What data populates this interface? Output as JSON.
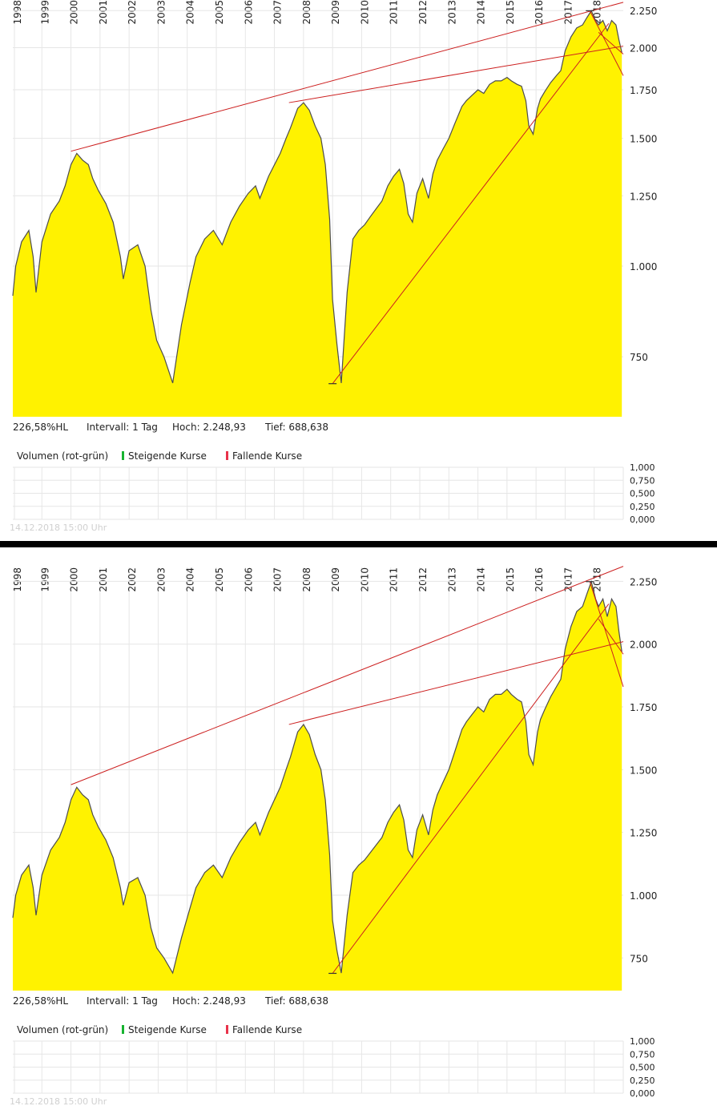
{
  "colors": {
    "fill": "#fff200",
    "price_line": "#4d4d4d",
    "trend_line": "#cc1f1f",
    "grid": "#e6e6e6",
    "rising": "#17b330",
    "falling": "#e8334a",
    "divider": "#000000"
  },
  "panels": [
    {
      "scale": "log",
      "info": {
        "range": "226,58%HL",
        "interval": "Intervall: 1 Tag",
        "high": "Hoch:  2.248,93",
        "low": "Tief:  688,638"
      },
      "volume_legend": {
        "label": "Volumen (rot-grün)",
        "rising": "Steigende Kurse",
        "falling": "Fallende Kurse"
      },
      "volume_ticks": [
        "1,000",
        "0,750",
        "0,500",
        "0,250",
        "0,000"
      ],
      "timestamp": "14.12.2018 15:00 Uhr"
    },
    {
      "scale": "linear",
      "info": {
        "range": "226,58%HL",
        "interval": "Intervall: 1 Tag",
        "high": "Hoch:  2.248,93",
        "low": "Tief:  688,638"
      },
      "volume_legend": {
        "label": "Volumen (rot-grün)",
        "rising": "Steigende Kurse",
        "falling": "Fallende Kurse"
      },
      "volume_ticks": [
        "1,000",
        "0,750",
        "0,500",
        "0,250",
        "0,000"
      ],
      "timestamp": "14.12.2018 15:00 Uhr"
    }
  ],
  "chart_data": {
    "type": "area",
    "x_unit": "year",
    "years": [
      "1998",
      "1999",
      "2000",
      "2001",
      "2002",
      "2003",
      "2004",
      "2005",
      "2006",
      "2007",
      "2008",
      "2009",
      "2010",
      "2011",
      "2012",
      "2013",
      "2014",
      "2015",
      "2016",
      "2017",
      "2018"
    ],
    "y_ticks": [
      750,
      1000,
      1250,
      1500,
      1750,
      2000,
      2250
    ],
    "y_tick_labels": [
      "750",
      "1.000",
      "1.250",
      "1.500",
      "1.750",
      "2.000",
      "2.250"
    ],
    "ylim": [
      620,
      2280
    ],
    "x_range": [
      1998.0,
      2019.0
    ],
    "series": [
      {
        "x": [
          1998.0,
          1998.1,
          1998.3,
          1998.55,
          1998.7,
          1998.8,
          1999.0,
          1999.3,
          1999.6,
          1999.8,
          2000.0,
          2000.2,
          2000.4,
          2000.6,
          2000.75,
          2000.95,
          2001.2,
          2001.45,
          2001.7,
          2001.8,
          2002.0,
          2002.3,
          2002.55,
          2002.75,
          2002.95,
          2003.2,
          2003.5,
          2003.8,
          2004.1,
          2004.3,
          2004.6,
          2004.9,
          2005.2,
          2005.5,
          2005.8,
          2006.1,
          2006.35,
          2006.5,
          2006.8,
          2007.2,
          2007.4,
          2007.55,
          2007.8,
          2008.0,
          2008.2,
          2008.4,
          2008.6,
          2008.75,
          2008.9,
          2009.0,
          2009.15,
          2009.3,
          2009.5,
          2009.7,
          2009.9,
          2010.1,
          2010.3,
          2010.5,
          2010.7,
          2010.9,
          2011.1,
          2011.3,
          2011.45,
          2011.6,
          2011.75,
          2011.9,
          2012.1,
          2012.3,
          2012.45,
          2012.6,
          2012.8,
          2013.0,
          2013.2,
          2013.45,
          2013.6,
          2013.8,
          2014.0,
          2014.2,
          2014.4,
          2014.6,
          2014.8,
          2015.0,
          2015.15,
          2015.35,
          2015.5,
          2015.65,
          2015.75,
          2015.9,
          2016.05,
          2016.15,
          2016.3,
          2016.5,
          2016.7,
          2016.85,
          2017.0,
          2017.2,
          2017.4,
          2017.6,
          2017.75,
          2017.9,
          2018.05,
          2018.15,
          2018.3,
          2018.45,
          2018.6,
          2018.75,
          2018.85,
          2018.95
        ],
        "y": [
          910,
          1000,
          1080,
          1120,
          1030,
          920,
          1080,
          1180,
          1230,
          1290,
          1380,
          1430,
          1400,
          1380,
          1320,
          1270,
          1220,
          1150,
          1030,
          960,
          1050,
          1070,
          1000,
          870,
          790,
          750,
          690,
          830,
          950,
          1030,
          1090,
          1120,
          1070,
          1150,
          1210,
          1260,
          1290,
          1240,
          1330,
          1430,
          1500,
          1550,
          1650,
          1680,
          1640,
          1560,
          1500,
          1380,
          1160,
          900,
          780,
          690,
          920,
          1090,
          1120,
          1140,
          1170,
          1200,
          1230,
          1290,
          1330,
          1360,
          1300,
          1180,
          1150,
          1260,
          1320,
          1240,
          1340,
          1400,
          1450,
          1500,
          1570,
          1660,
          1690,
          1720,
          1750,
          1730,
          1780,
          1800,
          1800,
          1820,
          1800,
          1780,
          1770,
          1690,
          1560,
          1520,
          1650,
          1700,
          1740,
          1790,
          1830,
          1860,
          1980,
          2070,
          2130,
          2150,
          2200,
          2249,
          2180,
          2150,
          2180,
          2110,
          2180,
          2150,
          2050,
          1970
        ]
      }
    ],
    "trendlines": [
      [
        2000.0,
        1440,
        2019.0,
        2310
      ],
      [
        2007.5,
        1680,
        2019.0,
        2010
      ],
      [
        2009.0,
        688.638,
        2018.5,
        2160
      ],
      [
        2017.85,
        2248.93,
        2019.0,
        1830
      ],
      [
        2018.15,
        2100,
        2019.0,
        1960
      ]
    ]
  }
}
